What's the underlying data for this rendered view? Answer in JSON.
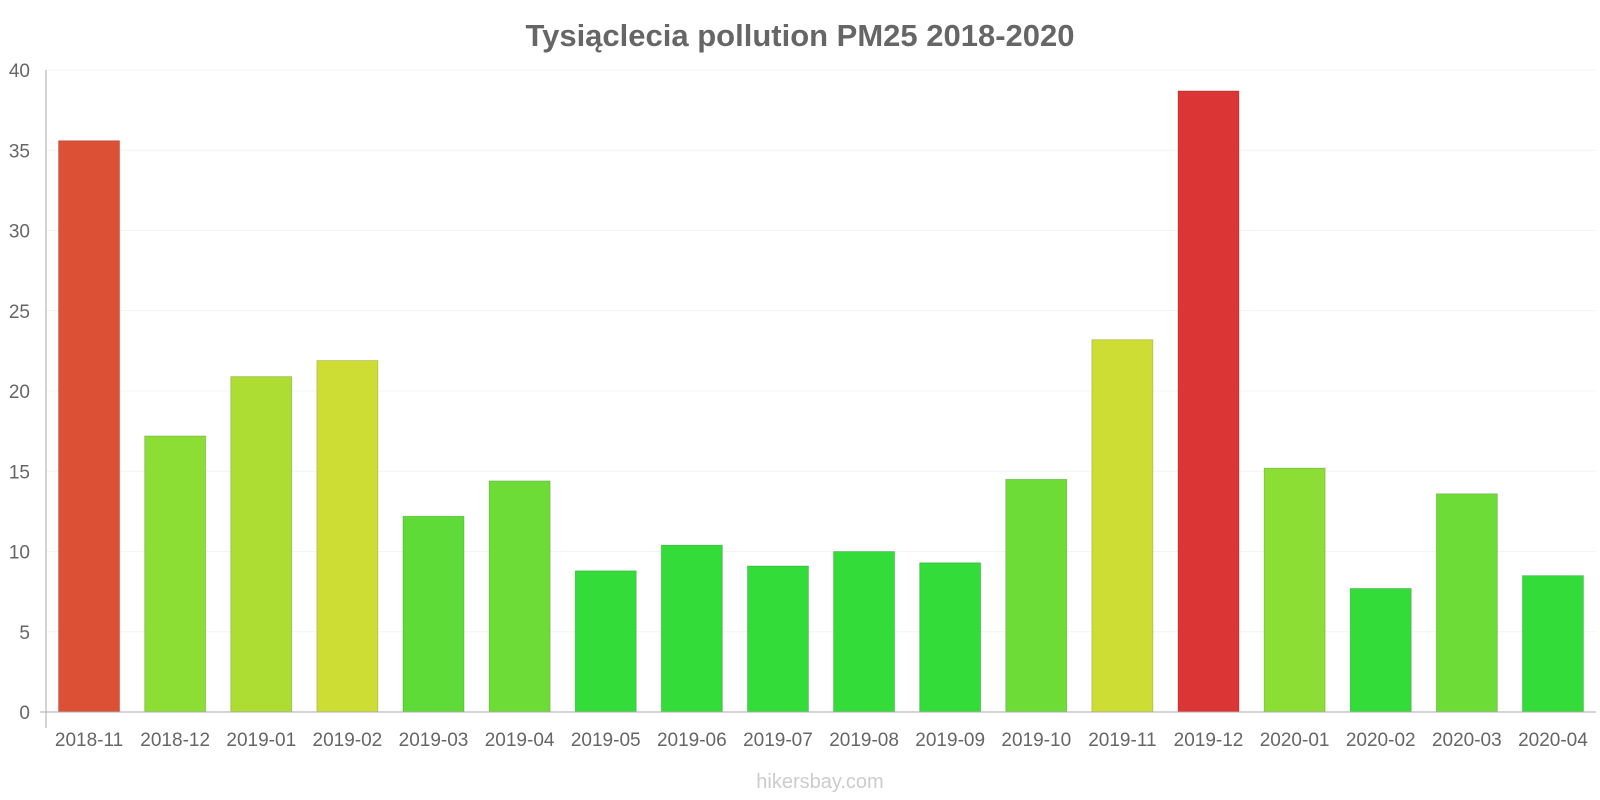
{
  "chart_data": {
    "type": "bar",
    "title": "Tysiąclecia pollution PM25 2018-2020",
    "xlabel": "",
    "ylabel": "",
    "ylim": [
      0,
      40
    ],
    "yticks": [
      0,
      5,
      10,
      15,
      20,
      25,
      30,
      35,
      40
    ],
    "grid": true,
    "categories": [
      "2018-11",
      "2018-12",
      "2019-01",
      "2019-02",
      "2019-03",
      "2019-04",
      "2019-05",
      "2019-06",
      "2019-07",
      "2019-08",
      "2019-09",
      "2019-10",
      "2019-11",
      "2019-12",
      "2020-01",
      "2020-02",
      "2020-03",
      "2020-04"
    ],
    "values": [
      35.6,
      17.2,
      20.9,
      21.9,
      12.2,
      14.4,
      8.8,
      10.4,
      9.1,
      10.0,
      9.3,
      14.5,
      23.2,
      38.7,
      15.2,
      7.7,
      13.6,
      8.5
    ],
    "colors": [
      "#dc5035",
      "#8cdd34",
      "#addd32",
      "#cedd33",
      "#5edb36",
      "#6ddc36",
      "#33dc38",
      "#33dc38",
      "#33dc38",
      "#33dc38",
      "#33dc38",
      "#6ddc36",
      "#cedd33",
      "#dc3535",
      "#8cdd34",
      "#33dc38",
      "#6ddc36",
      "#33dc38"
    ],
    "text_color": "#666666",
    "axis_color": "#aaaaaa",
    "grid_color": "#f4f4f4"
  },
  "watermark": "hikersbay.com"
}
